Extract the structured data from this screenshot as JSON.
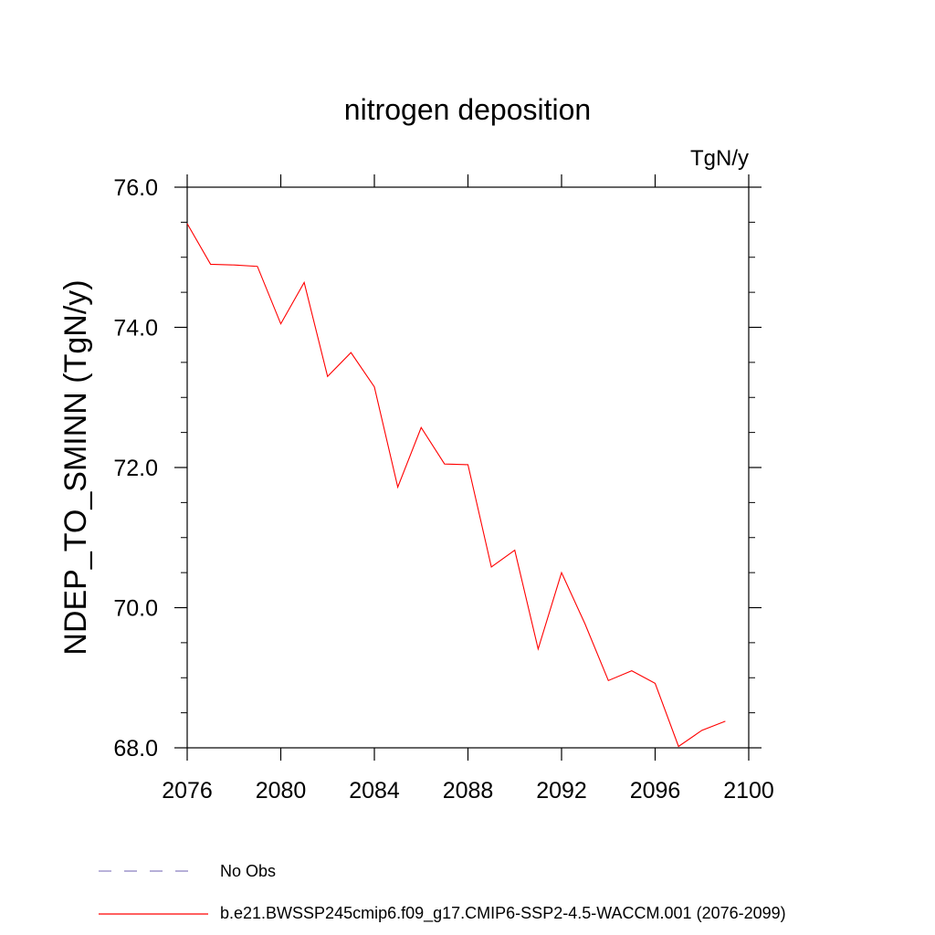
{
  "chart_data": {
    "type": "line",
    "title": "nitrogen deposition",
    "units_label": "TgN/y",
    "ylabel": "NDEP_TO_SMINN  (TgN/y)",
    "xlabel": "",
    "xlim": [
      2076,
      2100
    ],
    "ylim": [
      68.0,
      76.0
    ],
    "x_ticks": [
      "2076",
      "2080",
      "2084",
      "2088",
      "2092",
      "2096",
      "2100"
    ],
    "y_ticks": [
      "68.0",
      "70.0",
      "72.0",
      "74.0",
      "76.0"
    ],
    "x_tick_values": [
      2076,
      2080,
      2084,
      2088,
      2092,
      2096,
      2100
    ],
    "y_tick_values": [
      68.0,
      70.0,
      72.0,
      74.0,
      76.0
    ],
    "grid": false,
    "series": [
      {
        "name": "b.e21.BWSSP245cmip6.f09_g17.CMIP6-SSP2-4.5-WACCM.001 (2076-2099)",
        "color": "#ff0000",
        "x": [
          2076,
          2077,
          2078,
          2079,
          2080,
          2081,
          2082,
          2083,
          2084,
          2085,
          2086,
          2087,
          2088,
          2089,
          2090,
          2091,
          2092,
          2093,
          2094,
          2095,
          2096,
          2097,
          2098,
          2099
        ],
        "values": [
          75.48,
          74.9,
          74.89,
          74.87,
          74.05,
          74.64,
          73.3,
          73.64,
          73.15,
          71.72,
          72.57,
          72.05,
          72.04,
          70.58,
          70.82,
          69.41,
          70.5,
          69.77,
          68.96,
          69.1,
          68.92,
          68.02,
          68.25,
          68.38
        ]
      }
    ],
    "legend": [
      {
        "label": "No Obs",
        "style": "dashed",
        "color": "#8a7fc0"
      },
      {
        "label": "b.e21.BWSSP245cmip6.f09_g17.CMIP6-SSP2-4.5-WACCM.001 (2076-2099)",
        "style": "solid",
        "color": "#ff0000"
      }
    ]
  }
}
